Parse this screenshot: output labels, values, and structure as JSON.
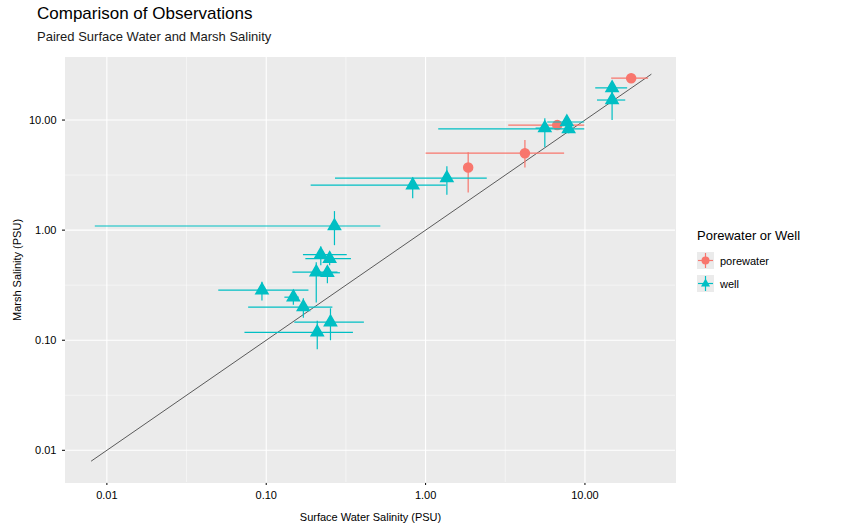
{
  "chart_data": {
    "type": "scatter",
    "title": "Comparison of Observations",
    "subtitle": "Paired Surface Water and Marsh Salinity",
    "x_label": "Surface Water Salinity (PSU)",
    "y_label": "Marsh Salinity (PSU)",
    "log": true,
    "grid": true,
    "legend": "right",
    "legend_title": "Porewater or Well",
    "xlim": [
      0.0055,
      37
    ],
    "ylim": [
      0.0051,
      37
    ],
    "xticks": [
      0.01,
      {
        "value": 0.1,
        "label": "0.10"
      },
      {
        "value": 1,
        "label": "1.00"
      },
      {
        "value": 10,
        "label": "10.00"
      }
    ],
    "yticks": [
      0.01,
      {
        "value": 0.1,
        "label": "0.10"
      },
      {
        "value": 1,
        "label": "1.00"
      },
      {
        "value": 10,
        "label": "10.00"
      }
    ],
    "reference_line": {
      "x": [
        0.008,
        26
      ],
      "y": [
        0.008,
        26
      ]
    },
    "series": [
      {
        "name": "porewater",
        "color": "#F8766D",
        "marker": "circle",
        "x": [
          19.5,
          6.7,
          4.2,
          1.85
        ],
        "y": [
          24,
          9.0,
          5.0,
          3.7
        ],
        "x_low": [
          14.6,
          3.3,
          1.0,
          1.8
        ],
        "x_high": [
          24.9,
          9.9,
          7.4,
          1.9
        ],
        "y_low": [
          22,
          8.5,
          3.7,
          2.2
        ],
        "y_high": [
          26,
          9.5,
          6.6,
          5.1
        ]
      },
      {
        "name": "well",
        "color": "#00BFC4",
        "marker": "triangle",
        "x": [
          14.8,
          14.8,
          7.7,
          5.6,
          7.9,
          1.36,
          0.83,
          0.268,
          0.22,
          0.25,
          0.206,
          0.242,
          0.094,
          0.148,
          0.171,
          0.253,
          0.209
        ],
        "y": [
          19.6,
          15.2,
          9.6,
          8.45,
          8.3,
          2.97,
          2.56,
          1.09,
          0.6,
          0.55,
          0.415,
          0.41,
          0.285,
          0.246,
          0.2,
          0.146,
          0.118
        ],
        "x_low": [
          11.6,
          11.9,
          5.8,
          4.9,
          1.2,
          0.27,
          0.19,
          0.0084,
          0.17,
          0.176,
          0.146,
          0.2,
          0.05,
          0.13,
          0.077,
          0.15,
          0.073
        ],
        "x_high": [
          18.4,
          17.9,
          9.9,
          6.3,
          9.9,
          2.42,
          1.34,
          0.52,
          0.32,
          0.34,
          0.28,
          0.29,
          0.184,
          0.16,
          0.26,
          0.41,
          0.35
        ],
        "y_low": [
          16.5,
          10.0,
          8.8,
          5.7,
          7.6,
          2.1,
          1.95,
          0.73,
          0.48,
          0.48,
          0.22,
          0.33,
          0.23,
          0.21,
          0.16,
          0.1,
          0.083
        ],
        "y_high": [
          22,
          18.8,
          10.4,
          10.4,
          9.0,
          3.8,
          3.0,
          1.49,
          0.71,
          0.62,
          0.51,
          0.47,
          0.34,
          0.28,
          0.24,
          0.195,
          0.15
        ]
      }
    ]
  }
}
